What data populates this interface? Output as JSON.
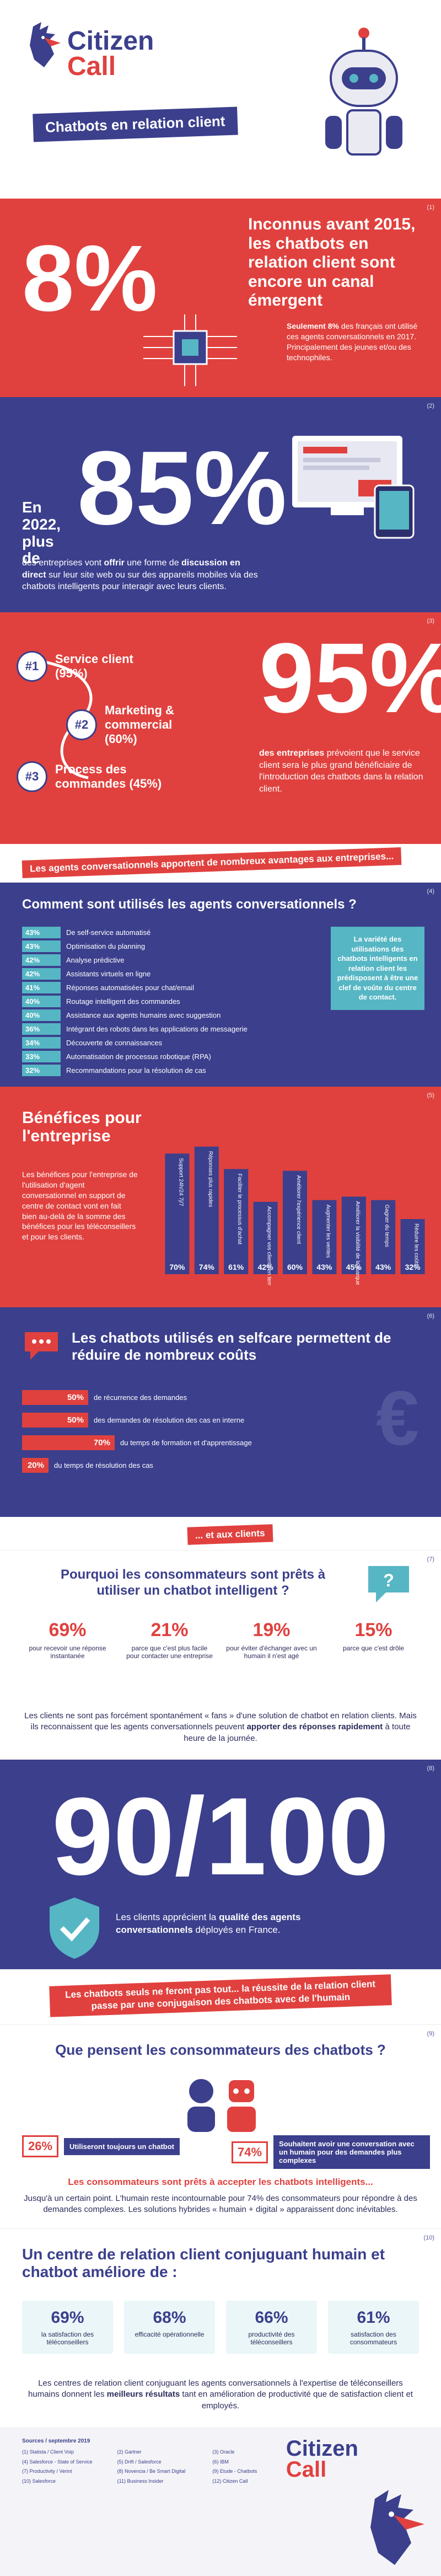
{
  "header": {
    "brand_line1": "Citizen",
    "brand_line2": "Call",
    "title": "Chatbots en relation client"
  },
  "s1": {
    "num": "(1)",
    "big": "8%",
    "headline": "Inconnus avant 2015, les chatbots en relation client sont encore un canal émergent",
    "text_bold": "Seulement 8%",
    "text": " des français ont utilisé ces agents conversationnels en 2017. Principalement des jeunes et/ou des technophiles."
  },
  "s2": {
    "num": "(2)",
    "pre": "En 2022, plus de",
    "big": "85%",
    "text_a": "des entreprises vont ",
    "text_b": "offrir",
    "text_c": " une forme de ",
    "text_d": "discussion en direct",
    "text_e": " sur leur site web ou sur des appareils mobiles via des chatbots intelligents pour interagir avec leurs clients."
  },
  "s3": {
    "num": "(3)",
    "items": [
      {
        "badge": "#1",
        "label": "Service client (95%)"
      },
      {
        "badge": "#2",
        "label": "Marketing & commercial (60%)"
      },
      {
        "badge": "#3",
        "label": "Process des commandes (45%)"
      }
    ],
    "big": "95%",
    "text_bold": "des entreprises",
    "text": " prévoient que le service client sera le plus grand bénéficiaire de l'introduction des chatbots dans la relation client."
  },
  "banner1": "Les agents conversationnels apportent de nombreux avantages aux entreprises...",
  "s4": {
    "num": "(4)",
    "title": "Comment sont utilisés les agents conversationnels ?",
    "rows": [
      {
        "pct": "43%",
        "label": "De self-service automatisé"
      },
      {
        "pct": "43%",
        "label": "Optimisation du planning"
      },
      {
        "pct": "42%",
        "label": "Analyse prédictive"
      },
      {
        "pct": "42%",
        "label": "Assistants virtuels en ligne"
      },
      {
        "pct": "41%",
        "label": "Réponses automatisées pour chat/email"
      },
      {
        "pct": "40%",
        "label": "Routage intelligent des commandes"
      },
      {
        "pct": "40%",
        "label": "Assistance aux agents humains avec suggestion"
      },
      {
        "pct": "36%",
        "label": "Intégrant des robots dans les applications de messagerie"
      },
      {
        "pct": "34%",
        "label": "Découverte de connaissances"
      },
      {
        "pct": "33%",
        "label": "Automatisation de processus robotique (RPA)"
      },
      {
        "pct": "32%",
        "label": "Recommandations pour la résolution de cas"
      }
    ],
    "note": "La variété des utilisations des chatbots intelligents en relation client les prédisposent à être une clef de voûte du centre de contact."
  },
  "s5": {
    "num": "(5)",
    "title": "Bénéfices pour l'entreprise",
    "text": "Les bénéfices pour l'entreprise de l'utilisation d'agent conversationnel en support de centre de contact vont en fait bien au-delà de la somme des bénéfices pour les téléconseillers et pour les clients.",
    "bars": [
      {
        "pct": "70%",
        "label": "Support 24h/24 7j/7",
        "value": 70
      },
      {
        "pct": "74%",
        "label": "Réponses plus rapides",
        "value": 74
      },
      {
        "pct": "61%",
        "label": "Faciliter le processus d'achat",
        "value": 61
      },
      {
        "pct": "42%",
        "label": "Accompagner vos clients en temps réel",
        "value": 42
      },
      {
        "pct": "60%",
        "label": "Améliorer l'expérience client",
        "value": 60
      },
      {
        "pct": "43%",
        "label": "Augmenter les ventes",
        "value": 43
      },
      {
        "pct": "45%",
        "label": "Améliorer la visibilité de la marque",
        "value": 45
      },
      {
        "pct": "43%",
        "label": "Gagner du temps",
        "value": 43
      },
      {
        "pct": "32%",
        "label": "Réduire les coûts",
        "value": 32
      }
    ]
  },
  "s6": {
    "num": "(6)",
    "title": "Les chatbots utilisés en selfcare permettent de réduire de nombreux coûts",
    "rows": [
      {
        "pct": "50%",
        "label": "de récurrence des demandes",
        "value": 50
      },
      {
        "pct": "50%",
        "label": "des demandes de résolution des cas en interne",
        "value": 50
      },
      {
        "pct": "70%",
        "label": "du temps de formation et d'apprentissage",
        "value": 70
      },
      {
        "pct": "20%",
        "label": "du temps de résolution des cas",
        "value": 20
      }
    ]
  },
  "banner2": "... et aux clients",
  "s7": {
    "num": "(7)",
    "title": "Pourquoi les consommateurs sont prêts à utiliser un chatbot intelligent ?",
    "items": [
      {
        "pct": "69%",
        "label": "pour recevoir une réponse instantanée"
      },
      {
        "pct": "21%",
        "label": "parce que c'est plus facile pour contacter une entreprise"
      },
      {
        "pct": "19%",
        "label": "pour éviter d'échanger avec un humain il n'est agé"
      },
      {
        "pct": "15%",
        "label": "parce que c'est drôle"
      }
    ],
    "text_a": "Les clients ne sont pas forcément spontanément « fans » d'une solution de chatbot en relation clients. Mais ils reconnaissent que les agents conversationnels peuvent ",
    "text_b": "apporter des réponses rapidement",
    "text_c": " à toute heure de la journée."
  },
  "s8": {
    "num": "(8)",
    "big": "90/100",
    "text_a": "Les clients apprécient la ",
    "text_b": "qualité des agents conversationnels",
    "text_c": " déployés en France."
  },
  "banner3": "Les chatbots seuls ne feront pas tout... la réussite de la relation client passe par une conjugaison des chatbots avec de l'humain",
  "s9": {
    "num": "(9)",
    "title": "Que pensent les consommateurs des chatbots ?",
    "a_pct": "26%",
    "a_label": "Utiliseront toujours un chatbot",
    "b_pct": "74%",
    "b_label": "Souhaitent avoir une conversation avec un humain pour des demandes plus complexes",
    "sub": "Les consommateurs sont prêts à accepter les chatbots intelligents...",
    "text": "Jusqu'à un certain point. L'humain reste incontournable pour 74% des consommateurs pour répondre à des demandes complexes. Les solutions hybrides « humain + digital » apparaissent donc inévitables."
  },
  "s10": {
    "num": "(10)",
    "title": "Un centre de relation client conjuguant humain et chatbot améliore de :",
    "cards": [
      {
        "pct": "69%",
        "label": "la satisfaction des téléconseillers"
      },
      {
        "pct": "68%",
        "label": "efficacité opérationnelle"
      },
      {
        "pct": "66%",
        "label": "productivité des téléconseillers"
      },
      {
        "pct": "61%",
        "label": "satisfaction des consommateurs"
      }
    ],
    "text_a": "Les centres de relation client conjuguant les agents conversationnels à l'expertise de téléconseillers humains donnent les ",
    "text_b": "meilleurs résultats",
    "text_c": " tant en amélioration de productivité que de satisfaction client et employés."
  },
  "footer": {
    "brand_line1": "Citizen",
    "brand_line2": "Call",
    "sources_title": "Sources / septembre 2019",
    "sources": [
      "(1) Statista / Client Voip",
      "(2) Gartner",
      "(3) Oracle",
      "(4) Salesforce - State of Service",
      "(5) Drift / Salesforce",
      "(6) IBM",
      "(7) Productivity / Verint",
      "(8) Novencia / Be Smart Digital",
      "(9) Etude - Chatbots",
      "(10) Salesforce",
      "(11) Business Insider",
      "(12) Citizen Call"
    ]
  }
}
